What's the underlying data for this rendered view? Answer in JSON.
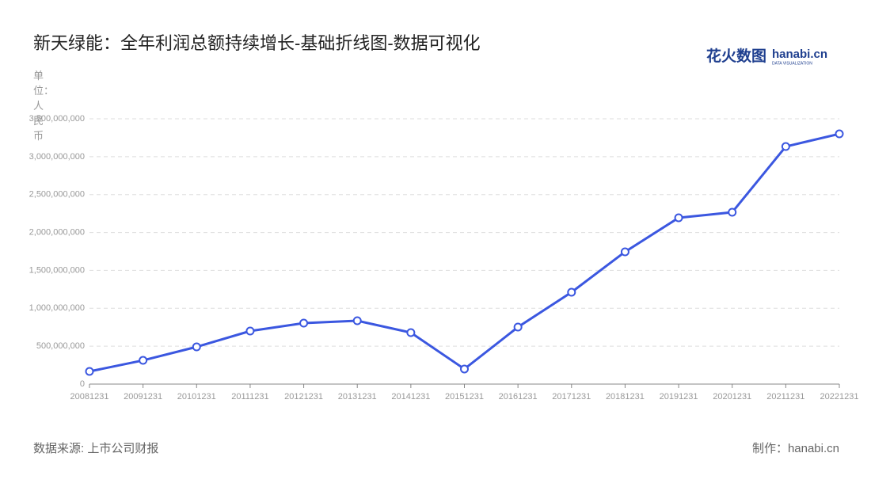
{
  "chart_data": {
    "type": "line",
    "title": "新天绿能：全年利润总额持续增长-基础折线图-数据可视化",
    "y_label": "单位：人民币",
    "source": "数据来源: 上市公司财报",
    "credit": "制作：hanabi.cn",
    "logo": {
      "text": "花火数图",
      "brand": "hanabi.cn",
      "tagline": "DATA VISUALIZATION"
    },
    "categories": [
      "20081231",
      "20091231",
      "20101231",
      "20111231",
      "20121231",
      "20131231",
      "20141231",
      "20151231",
      "20161231",
      "20171231",
      "20181231",
      "20191231",
      "20201231",
      "20211231",
      "20221231"
    ],
    "series": [
      {
        "name": "利润总额",
        "color": "#3b57e0",
        "values": [
          167000000,
          313000000,
          491000000,
          700000000,
          804000000,
          836000000,
          679000000,
          199000000,
          752000000,
          1212000000,
          1745000000,
          2194000000,
          2267000000,
          3134000000,
          3301000000
        ]
      }
    ],
    "ylim": [
      0,
      3500000000
    ],
    "yticks": [
      0,
      {
        "value": 500000000,
        "label": "500,000,000"
      },
      {
        "value": 1000000000,
        "label": "1,000,000,000"
      },
      {
        "value": 1500000000,
        "label": "1,500,000,000"
      },
      {
        "value": 2000000000,
        "label": "2,000,000,000"
      },
      {
        "value": 2500000000,
        "label": "2,500,000,000"
      },
      {
        "value": 3000000000,
        "label": "3,000,000,000"
      },
      {
        "value": 3500000000,
        "label": "3,500,000,000"
      }
    ],
    "grid": true
  }
}
